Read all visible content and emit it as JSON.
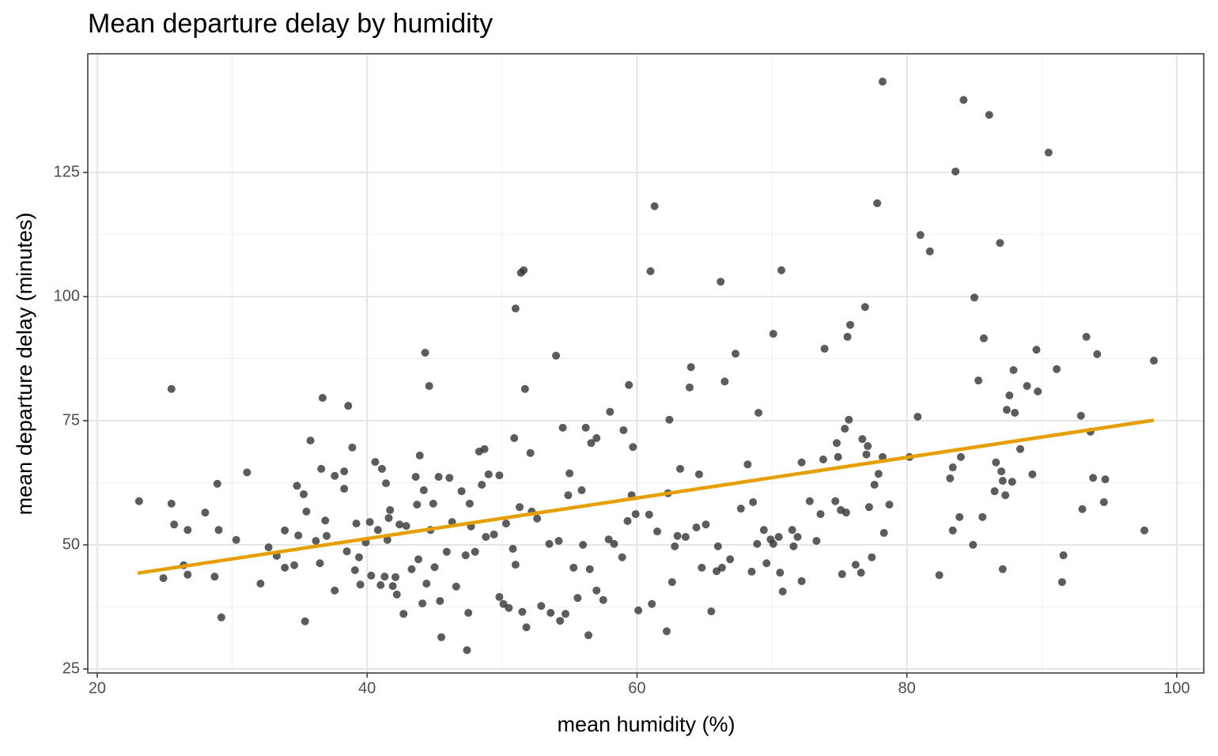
{
  "chart_data": {
    "type": "scatter",
    "title": "Mean departure delay by humidity",
    "xlabel": "mean humidity (%)",
    "ylabel": "mean departure delay (minutes)",
    "xlim": [
      19.3,
      102.0
    ],
    "ylim": [
      24.2,
      148.9
    ],
    "xticks": [
      20,
      40,
      60,
      80,
      100
    ],
    "yticks": [
      25,
      50,
      75,
      100,
      125
    ],
    "grid": true,
    "points": {
      "color": "#333333",
      "x": [
        23.1,
        24.9,
        25.5,
        25.5,
        25.7,
        26.4,
        26.7,
        26.7,
        28.0,
        28.7,
        28.9,
        29.0,
        29.2,
        30.3,
        31.1,
        32.1,
        32.7,
        33.3,
        33.9,
        33.9,
        34.6,
        34.8,
        34.9,
        35.3,
        35.4,
        35.5,
        35.8,
        36.2,
        36.5,
        36.6,
        36.7,
        36.9,
        37.0,
        37.6,
        37.6,
        38.3,
        38.3,
        38.5,
        38.6,
        38.9,
        39.1,
        39.2,
        39.4,
        39.5,
        39.9,
        40.2,
        40.3,
        40.6,
        40.8,
        41.0,
        41.1,
        41.3,
        41.4,
        41.5,
        41.6,
        41.7,
        41.9,
        42.1,
        42.2,
        42.4,
        42.7,
        42.9,
        43.3,
        43.6,
        43.7,
        43.8,
        43.9,
        44.1,
        44.2,
        44.3,
        44.4,
        44.6,
        44.7,
        44.9,
        45.0,
        45.3,
        45.4,
        45.5,
        45.9,
        46.1,
        46.3,
        46.6,
        47.0,
        47.3,
        47.4,
        47.5,
        47.6,
        47.7,
        48.0,
        48.3,
        48.5,
        48.7,
        48.8,
        49.0,
        49.4,
        49.8,
        49.8,
        50.1,
        50.3,
        50.5,
        50.8,
        50.9,
        51.0,
        51.0,
        51.3,
        51.4,
        51.5,
        51.6,
        51.7,
        51.8,
        52.1,
        52.2,
        52.6,
        52.9,
        53.5,
        53.6,
        54.0,
        54.2,
        54.3,
        54.5,
        54.7,
        54.9,
        55.0,
        55.3,
        55.6,
        55.9,
        56.0,
        56.2,
        56.4,
        56.5,
        56.6,
        57.0,
        57.0,
        57.5,
        57.9,
        58.0,
        58.3,
        58.9,
        59.0,
        59.3,
        59.4,
        59.6,
        59.7,
        59.9,
        60.1,
        60.9,
        61.0,
        61.1,
        61.3,
        61.5,
        62.2,
        62.3,
        62.4,
        62.6,
        62.8,
        63.0,
        63.2,
        63.6,
        63.9,
        64.0,
        64.4,
        64.6,
        64.8,
        65.1,
        65.5,
        65.9,
        66.0,
        66.2,
        66.3,
        66.5,
        66.9,
        67.3,
        67.7,
        68.2,
        68.5,
        68.6,
        68.9,
        69.0,
        69.4,
        69.6,
        69.9,
        70.1,
        70.1,
        70.5,
        70.6,
        70.7,
        70.8,
        71.5,
        71.6,
        71.9,
        72.2,
        72.2,
        72.8,
        73.3,
        73.6,
        73.8,
        73.9,
        74.7,
        74.8,
        74.9,
        75.1,
        75.2,
        75.4,
        75.5,
        75.6,
        75.8,
        75.7,
        76.2,
        76.6,
        76.7,
        76.9,
        77.0,
        77.1,
        77.2,
        77.4,
        77.6,
        77.8,
        77.9,
        78.2,
        78.2,
        78.3,
        78.7,
        80.2,
        80.8,
        81.0,
        81.7,
        82.4,
        83.2,
        83.4,
        83.4,
        83.6,
        83.9,
        84.0,
        84.2,
        84.9,
        85.0,
        85.3,
        85.6,
        85.7,
        86.1,
        86.5,
        86.6,
        86.9,
        87.0,
        87.1,
        87.1,
        87.3,
        87.4,
        87.6,
        87.8,
        87.9,
        88.0,
        88.4,
        88.9,
        89.3,
        89.6,
        89.7,
        90.5,
        91.1,
        91.5,
        91.6,
        92.9,
        93.0,
        93.3,
        93.6,
        93.8,
        94.1,
        94.6,
        94.7,
        97.6,
        98.3
      ],
      "values": [
        58.8,
        43.3,
        81.4,
        58.3,
        54.1,
        45.9,
        53.0,
        44.0,
        56.5,
        43.6,
        62.3,
        53.0,
        35.4,
        51.0,
        64.6,
        42.2,
        49.5,
        47.8,
        52.9,
        45.4,
        45.9,
        61.9,
        51.9,
        60.2,
        34.6,
        56.7,
        71.0,
        50.8,
        46.3,
        65.3,
        79.6,
        54.9,
        51.8,
        63.9,
        40.8,
        64.8,
        61.3,
        48.7,
        78.0,
        69.6,
        44.9,
        54.3,
        47.5,
        42.0,
        50.5,
        54.6,
        43.8,
        66.7,
        53.0,
        41.9,
        65.3,
        43.6,
        62.4,
        51.0,
        55.4,
        57.0,
        41.7,
        43.5,
        40.0,
        54.1,
        36.1,
        53.8,
        45.1,
        63.7,
        58.1,
        47.1,
        68.0,
        38.2,
        61.0,
        88.7,
        42.2,
        82.0,
        53.0,
        58.3,
        45.5,
        63.7,
        38.7,
        31.4,
        48.6,
        63.5,
        54.6,
        41.6,
        60.8,
        47.9,
        28.8,
        36.3,
        58.3,
        53.7,
        48.6,
        68.8,
        62.1,
        69.3,
        51.6,
        64.2,
        52.1,
        64.0,
        39.5,
        38.1,
        54.3,
        37.3,
        49.2,
        71.5,
        97.6,
        46.0,
        57.6,
        104.8,
        36.5,
        105.3,
        81.4,
        33.4,
        68.5,
        56.7,
        55.3,
        37.7,
        50.2,
        36.3,
        88.1,
        50.8,
        34.7,
        73.6,
        36.1,
        60.0,
        64.4,
        45.4,
        39.3,
        61.0,
        50.0,
        73.6,
        31.8,
        45.1,
        70.5,
        71.5,
        40.8,
        38.9,
        51.1,
        76.8,
        50.2,
        47.5,
        73.1,
        54.8,
        82.2,
        60.0,
        69.7,
        56.2,
        36.8,
        56.1,
        105.1,
        38.1,
        118.2,
        52.7,
        32.6,
        60.4,
        75.2,
        42.5,
        49.7,
        51.8,
        65.3,
        51.6,
        81.7,
        85.8,
        53.5,
        64.2,
        45.4,
        54.1,
        36.6,
        44.7,
        49.7,
        103.0,
        45.4,
        82.9,
        47.1,
        88.5,
        57.3,
        66.2,
        44.6,
        58.6,
        50.2,
        76.6,
        53.0,
        46.3,
        51.1,
        92.5,
        50.2,
        51.6,
        44.4,
        105.3,
        40.6,
        53.0,
        49.7,
        51.6,
        66.6,
        42.7,
        58.8,
        50.8,
        56.2,
        67.2,
        89.5,
        58.8,
        70.5,
        67.7,
        57.0,
        44.1,
        73.4,
        56.5,
        91.9,
        94.3,
        75.2,
        46.0,
        44.4,
        71.3,
        97.9,
        68.2,
        69.9,
        57.6,
        47.5,
        62.1,
        118.8,
        64.3,
        143.3,
        67.7,
        52.4,
        58.1,
        67.7,
        75.8,
        112.4,
        109.1,
        43.9,
        63.4,
        65.6,
        52.9,
        125.2,
        55.6,
        67.7,
        139.6,
        50.0,
        99.8,
        83.1,
        55.6,
        91.6,
        136.6,
        60.8,
        66.6,
        110.8,
        64.8,
        45.1,
        62.9,
        60.0,
        77.2,
        80.1,
        62.7,
        85.2,
        76.6,
        69.3,
        82.0,
        64.2,
        89.3,
        80.9,
        129.0,
        85.4,
        42.5,
        47.9,
        76.0,
        57.2,
        91.9,
        72.8,
        63.5,
        88.4,
        58.6,
        63.2,
        52.9,
        87.1
      ]
    },
    "fit": {
      "color": "#E69F00",
      "x": [
        23.0,
        98.3
      ],
      "values": [
        44.3,
        75.1
      ]
    }
  }
}
